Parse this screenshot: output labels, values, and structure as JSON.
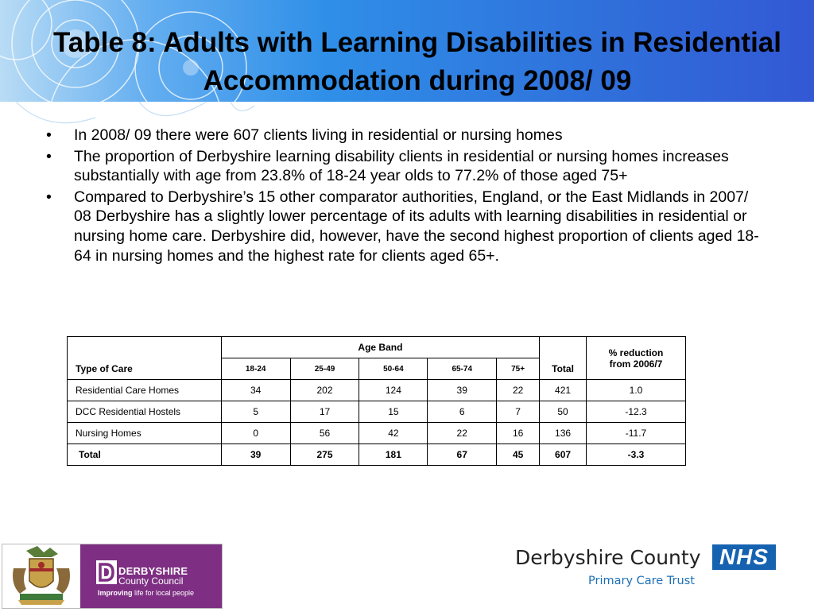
{
  "slide": {
    "title": "Table 8: Adults with Learning Disabilities in Residential Accommodation during 2008/ 09",
    "bullet_char": "•",
    "bullets": [
      "In 2008/ 09 there were 607 clients living in residential or nursing homes",
      "The proportion of Derbyshire learning disability clients in residential or nursing homes increases substantially with age from 23.8% of 18-24 year olds to 77.2% of those aged 75+",
      "Compared to Derbyshire’s 15 other comparator authorities, England, or the East Midlands in 2007/ 08 Derbyshire has a slightly lower percentage of its adults with learning disabilities in residential or nursing home care. Derbyshire did, however, have the second highest proportion of clients aged 18-64 in nursing homes and the highest rate for clients aged 65+."
    ]
  },
  "table": {
    "type_of_care_header": "Type of Care",
    "age_band_header": "Age Band",
    "age_bands": [
      "18-24",
      "25-49",
      "50-64",
      "65-74",
      "75+"
    ],
    "total_header": "Total",
    "reduction_header": "% reduction from 2006/7",
    "rows": [
      {
        "label": "Residential Care Homes",
        "values": [
          "34",
          "202",
          "124",
          "39",
          "22"
        ],
        "total": "421",
        "reduction": "1.0"
      },
      {
        "label": "DCC Residential Hostels",
        "values": [
          "5",
          "17",
          "15",
          "6",
          "7"
        ],
        "total": "50",
        "reduction": "-12.3"
      },
      {
        "label": "Nursing Homes",
        "values": [
          "0",
          "56",
          "42",
          "22",
          "16"
        ],
        "total": "136",
        "reduction": "-11.7"
      },
      {
        "label": "Total",
        "values": [
          "39",
          "275",
          "181",
          "67",
          "45"
        ],
        "total": "607",
        "reduction": "-3.3"
      }
    ]
  },
  "logos": {
    "council_line1": "DERBYSHIRE",
    "council_line2": "County Council",
    "council_tagline_bold": "Improving",
    "council_tagline_rest": " life for local people",
    "pct_name": "Derbyshire County",
    "nhs_badge": "NHS",
    "pct_sub": "Primary Care Trust"
  },
  "colors": {
    "header_blue": "#2f73dc",
    "council_purple": "#7e2f83",
    "nhs_blue": "#1562b0",
    "pct_text_blue": "#1c6fb7"
  }
}
